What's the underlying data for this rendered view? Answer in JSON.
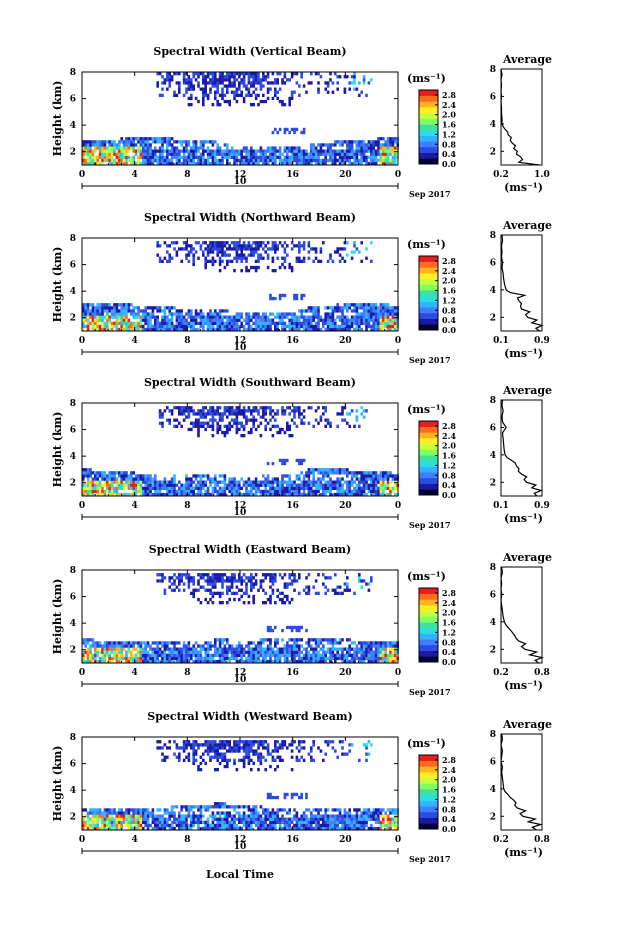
{
  "chart_data": {
    "type": "heatmap",
    "x_label": "Local Time",
    "date_label": "Sep 2017",
    "day_label": "10",
    "x_ticks": [
      "0",
      "4",
      "8",
      "12",
      "16",
      "20",
      "0"
    ],
    "y_ticks": [
      "2",
      "4",
      "6",
      "8"
    ],
    "y_label": "Height (km)",
    "xlim": [
      0,
      24
    ],
    "ylim": [
      1,
      8
    ],
    "colorbar": {
      "unit": "(ms⁻¹)",
      "ticks": [
        "0.0",
        "0.4",
        "0.8",
        "1.2",
        "1.6",
        "2.0",
        "2.4",
        "2.8"
      ],
      "range": [
        0,
        3.0
      ],
      "colors": [
        "#000033",
        "#1a1aa6",
        "#2d4be0",
        "#3f7fff",
        "#33b3ff",
        "#29e0e0",
        "#40e0a0",
        "#80ff60",
        "#c8ff3c",
        "#ffee22",
        "#ffb41e",
        "#ff6a1e",
        "#e62020"
      ]
    },
    "panels": [
      {
        "title": "Spectral Width (Vertical Beam)",
        "avg_title": "Average",
        "avg_xlabel": "(ms⁻¹)",
        "avg_ticks": [
          "0.2",
          "1.0"
        ],
        "avg_xlim": [
          0.2,
          1.0
        ],
        "avg_profile": [
          [
            1.0,
            0.95
          ],
          [
            1.2,
            0.55
          ],
          [
            1.4,
            0.62
          ],
          [
            1.6,
            0.58
          ],
          [
            1.8,
            0.5
          ],
          [
            2.0,
            0.52
          ],
          [
            2.2,
            0.45
          ],
          [
            2.4,
            0.48
          ],
          [
            2.6,
            0.42
          ],
          [
            2.8,
            0.38
          ],
          [
            3.0,
            0.4
          ],
          [
            3.2,
            0.34
          ],
          [
            3.4,
            0.33
          ],
          [
            3.6,
            0.28
          ],
          [
            3.8,
            0.24
          ],
          [
            4.0,
            0.22
          ],
          [
            4.4,
            0.22
          ],
          [
            4.8,
            0.21
          ],
          [
            5.2,
            0.21
          ],
          [
            5.6,
            0.2
          ],
          [
            6.0,
            0.21
          ],
          [
            6.4,
            0.2
          ],
          [
            6.8,
            0.21
          ],
          [
            7.2,
            0.2
          ],
          [
            7.6,
            0.22
          ],
          [
            8.0,
            0.2
          ]
        ]
      },
      {
        "title": "Spectral Width (Northward Beam)",
        "avg_title": "Average",
        "avg_xlabel": "(ms⁻¹)",
        "avg_ticks": [
          "0.1",
          "0.9"
        ],
        "avg_xlim": [
          0.1,
          0.9
        ],
        "avg_profile": [
          [
            1.0,
            0.85
          ],
          [
            1.2,
            0.78
          ],
          [
            1.4,
            0.9
          ],
          [
            1.6,
            0.7
          ],
          [
            1.8,
            0.8
          ],
          [
            2.0,
            0.62
          ],
          [
            2.2,
            0.58
          ],
          [
            2.4,
            0.66
          ],
          [
            2.6,
            0.5
          ],
          [
            2.8,
            0.48
          ],
          [
            3.0,
            0.5
          ],
          [
            3.2,
            0.45
          ],
          [
            3.4,
            0.42
          ],
          [
            3.6,
            0.56
          ],
          [
            3.8,
            0.28
          ],
          [
            4.0,
            0.2
          ],
          [
            4.4,
            0.17
          ],
          [
            4.8,
            0.15
          ],
          [
            5.2,
            0.14
          ],
          [
            5.6,
            0.12
          ],
          [
            6.0,
            0.13
          ],
          [
            6.4,
            0.11
          ],
          [
            6.8,
            0.12
          ],
          [
            7.2,
            0.11
          ],
          [
            7.6,
            0.13
          ],
          [
            8.0,
            0.12
          ]
        ]
      },
      {
        "title": "Spectral Width (Southward Beam)",
        "avg_title": "Average",
        "avg_xlabel": "(ms⁻¹)",
        "avg_ticks": [
          "0.1",
          "0.9"
        ],
        "avg_xlim": [
          0.1,
          0.9
        ],
        "avg_profile": [
          [
            1.0,
            0.8
          ],
          [
            1.2,
            0.75
          ],
          [
            1.4,
            0.88
          ],
          [
            1.6,
            0.7
          ],
          [
            1.8,
            0.78
          ],
          [
            2.0,
            0.6
          ],
          [
            2.2,
            0.55
          ],
          [
            2.4,
            0.6
          ],
          [
            2.6,
            0.5
          ],
          [
            2.8,
            0.44
          ],
          [
            3.0,
            0.45
          ],
          [
            3.2,
            0.4
          ],
          [
            3.4,
            0.38
          ],
          [
            3.6,
            0.3
          ],
          [
            3.8,
            0.22
          ],
          [
            4.0,
            0.18
          ],
          [
            4.4,
            0.16
          ],
          [
            4.8,
            0.15
          ],
          [
            5.2,
            0.14
          ],
          [
            5.6,
            0.13
          ],
          [
            6.0,
            0.2
          ],
          [
            6.4,
            0.13
          ],
          [
            6.8,
            0.12
          ],
          [
            7.2,
            0.14
          ],
          [
            7.6,
            0.12
          ],
          [
            8.0,
            0.13
          ]
        ]
      },
      {
        "title": "Spectral Width (Eastward Beam)",
        "avg_title": "Average",
        "avg_xlabel": "(ms⁻¹)",
        "avg_ticks": [
          "0.2",
          "0.8"
        ],
        "avg_xlim": [
          0.2,
          0.8
        ],
        "avg_profile": [
          [
            1.0,
            0.75
          ],
          [
            1.2,
            0.7
          ],
          [
            1.4,
            0.8
          ],
          [
            1.6,
            0.62
          ],
          [
            1.8,
            0.72
          ],
          [
            2.0,
            0.55
          ],
          [
            2.2,
            0.5
          ],
          [
            2.4,
            0.56
          ],
          [
            2.6,
            0.46
          ],
          [
            2.8,
            0.42
          ],
          [
            3.0,
            0.4
          ],
          [
            3.2,
            0.37
          ],
          [
            3.4,
            0.34
          ],
          [
            3.6,
            0.3
          ],
          [
            3.8,
            0.27
          ],
          [
            4.0,
            0.25
          ],
          [
            4.4,
            0.23
          ],
          [
            4.8,
            0.22
          ],
          [
            5.2,
            0.21
          ],
          [
            5.6,
            0.2
          ],
          [
            6.0,
            0.21
          ],
          [
            6.4,
            0.2
          ],
          [
            6.8,
            0.21
          ],
          [
            7.2,
            0.2
          ],
          [
            7.6,
            0.22
          ],
          [
            8.0,
            0.21
          ]
        ]
      },
      {
        "title": "Spectral Width (Westward Beam)",
        "avg_title": "Average",
        "avg_xlabel": "(ms⁻¹)",
        "avg_ticks": [
          "0.2",
          "0.8"
        ],
        "avg_xlim": [
          0.2,
          0.8
        ],
        "avg_profile": [
          [
            1.0,
            0.72
          ],
          [
            1.2,
            0.66
          ],
          [
            1.4,
            0.78
          ],
          [
            1.6,
            0.6
          ],
          [
            1.8,
            0.7
          ],
          [
            2.0,
            0.52
          ],
          [
            2.2,
            0.48
          ],
          [
            2.4,
            0.56
          ],
          [
            2.6,
            0.44
          ],
          [
            2.8,
            0.4
          ],
          [
            3.0,
            0.42
          ],
          [
            3.2,
            0.38
          ],
          [
            3.4,
            0.33
          ],
          [
            3.6,
            0.3
          ],
          [
            3.8,
            0.26
          ],
          [
            4.0,
            0.24
          ],
          [
            4.4,
            0.23
          ],
          [
            4.8,
            0.22
          ],
          [
            5.2,
            0.21
          ],
          [
            5.6,
            0.22
          ],
          [
            6.0,
            0.2
          ],
          [
            6.4,
            0.21
          ],
          [
            6.8,
            0.22
          ],
          [
            7.2,
            0.2
          ],
          [
            7.6,
            0.22
          ],
          [
            8.0,
            0.21
          ]
        ]
      }
    ]
  }
}
